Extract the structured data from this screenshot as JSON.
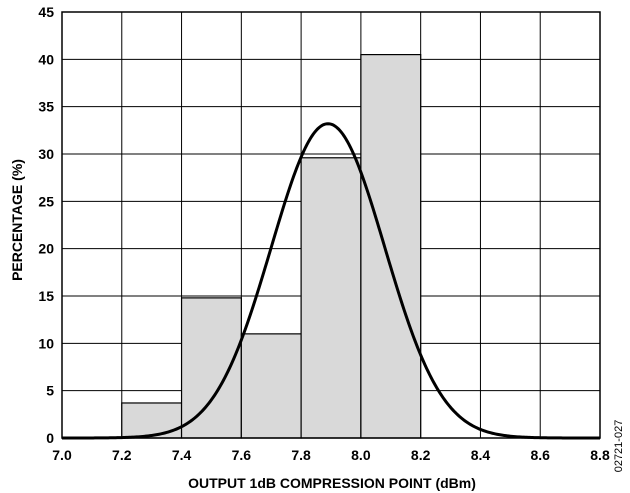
{
  "chart_data": {
    "type": "bar",
    "title": "",
    "xlabel": "OUTPUT 1dB COMPRESSION POINT (dBm)",
    "ylabel": "PERCENTAGE (%)",
    "xlim": [
      7.0,
      8.8
    ],
    "ylim": [
      0,
      45
    ],
    "grid": true,
    "x_ticks": [
      "7.0",
      "7.2",
      "7.4",
      "7.6",
      "7.8",
      "8.0",
      "8.2",
      "8.4",
      "8.6",
      "8.8"
    ],
    "y_ticks": [
      "0",
      "5",
      "10",
      "15",
      "20",
      "25",
      "30",
      "35",
      "40",
      "45"
    ],
    "bins": [
      {
        "start": 7.2,
        "end": 7.4,
        "value": 3.7
      },
      {
        "start": 7.4,
        "end": 7.6,
        "value": 14.8
      },
      {
        "start": 7.6,
        "end": 7.8,
        "value": 11.0
      },
      {
        "start": 7.8,
        "end": 8.0,
        "value": 29.6
      },
      {
        "start": 8.0,
        "end": 8.2,
        "value": 40.5
      }
    ],
    "fit_curve": {
      "type": "normal",
      "mean": 7.89,
      "peak": 33.2,
      "sigma": 0.19
    },
    "colors": {
      "bar_fill": "#d9d9d9",
      "grid": "#000000",
      "curve": "#000000"
    },
    "figure_id": "02721-027"
  }
}
